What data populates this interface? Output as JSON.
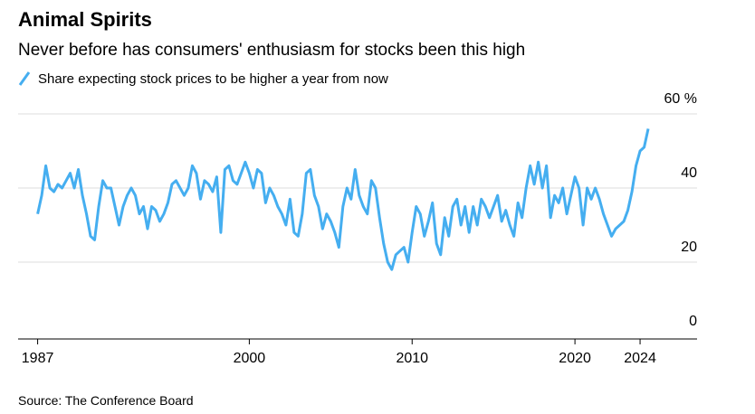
{
  "chart_data": {
    "type": "line",
    "title": "Animal Spirits",
    "subtitle": "Never before has consumers' enthusiasm for stocks been this high",
    "source": "Source: The Conference Board",
    "series": [
      {
        "name": "Share expecting stock prices to be higher a year from now",
        "color": "#45aef0",
        "values": [
          33,
          38,
          46,
          40,
          39,
          41,
          40,
          42,
          44,
          40,
          45,
          38,
          33,
          27,
          26,
          35,
          42,
          40,
          40,
          35,
          30,
          35,
          38,
          40,
          38,
          33,
          35,
          29,
          35,
          34,
          31,
          33,
          36,
          41,
          42,
          40,
          38,
          40,
          46,
          44,
          37,
          42,
          41,
          39,
          43,
          28,
          45,
          46,
          42,
          41,
          44,
          47,
          44,
          40,
          45,
          44,
          36,
          40,
          38,
          35,
          33,
          30,
          37,
          28,
          27,
          33,
          44,
          45,
          38,
          35,
          29,
          33,
          31,
          28,
          24,
          35,
          40,
          37,
          45,
          38,
          35,
          33,
          42,
          40,
          32,
          25,
          20,
          18,
          22,
          23,
          24,
          20,
          28,
          35,
          33,
          27,
          31,
          36,
          25,
          22,
          32,
          27,
          35,
          37,
          30,
          35,
          28,
          35,
          30,
          37,
          35,
          32,
          35,
          38,
          31,
          34,
          30,
          27,
          36,
          32,
          40,
          46,
          41,
          47,
          40,
          46,
          32,
          38,
          36,
          40,
          33,
          38,
          43,
          40,
          30,
          40,
          37,
          40,
          37,
          33,
          30,
          27,
          29,
          30,
          31,
          34,
          39,
          46,
          50,
          51,
          56
        ]
      }
    ],
    "x": [
      1987,
      1987.25,
      1987.5,
      1987.75,
      1988,
      1988.25,
      1988.5,
      1988.75,
      1989,
      1989.25,
      1989.5,
      1989.75,
      1990,
      1990.25,
      1990.5,
      1990.75,
      1991,
      1991.25,
      1991.5,
      1991.75,
      1992,
      1992.25,
      1992.5,
      1992.75,
      1993,
      1993.25,
      1993.5,
      1993.75,
      1994,
      1994.25,
      1994.5,
      1994.75,
      1995,
      1995.25,
      1995.5,
      1995.75,
      1996,
      1996.25,
      1996.5,
      1996.75,
      1997,
      1997.25,
      1997.5,
      1997.75,
      1998,
      1998.25,
      1998.5,
      1998.75,
      1999,
      1999.25,
      1999.5,
      1999.75,
      2000,
      2000.25,
      2000.5,
      2000.75,
      2001,
      2001.25,
      2001.5,
      2001.75,
      2002,
      2002.25,
      2002.5,
      2002.75,
      2003,
      2003.25,
      2003.5,
      2003.75,
      2004,
      2004.25,
      2004.5,
      2004.75,
      2005,
      2005.25,
      2005.5,
      2005.75,
      2006,
      2006.25,
      2006.5,
      2006.75,
      2007,
      2007.25,
      2007.5,
      2007.75,
      2008,
      2008.25,
      2008.5,
      2008.75,
      2009,
      2009.25,
      2009.5,
      2009.75,
      2010,
      2010.25,
      2010.5,
      2010.75,
      2011,
      2011.25,
      2011.5,
      2011.75,
      2012,
      2012.25,
      2012.5,
      2012.75,
      2013,
      2013.25,
      2013.5,
      2013.75,
      2014,
      2014.25,
      2014.5,
      2014.75,
      2015,
      2015.25,
      2015.5,
      2015.75,
      2016,
      2016.25,
      2016.5,
      2016.75,
      2017,
      2017.25,
      2017.5,
      2017.75,
      2018,
      2018.25,
      2018.5,
      2018.75,
      2019,
      2019.25,
      2019.5,
      2019.75,
      2020,
      2020.25,
      2020.5,
      2020.75,
      2021,
      2021.25,
      2021.5,
      2021.75,
      2022,
      2022.25,
      2022.5,
      2022.75,
      2023,
      2023.25,
      2023.5,
      2023.75,
      2024,
      2024.25,
      2024.5
    ],
    "xlim": [
      1985.8,
      2027.5
    ],
    "xticks": [
      1987,
      2000,
      2010,
      2020,
      2024
    ],
    "ylim": [
      0,
      60
    ],
    "yticks": [
      0,
      20,
      40,
      {
        "value": 60,
        "label": "60 %"
      }
    ],
    "grid": true
  }
}
